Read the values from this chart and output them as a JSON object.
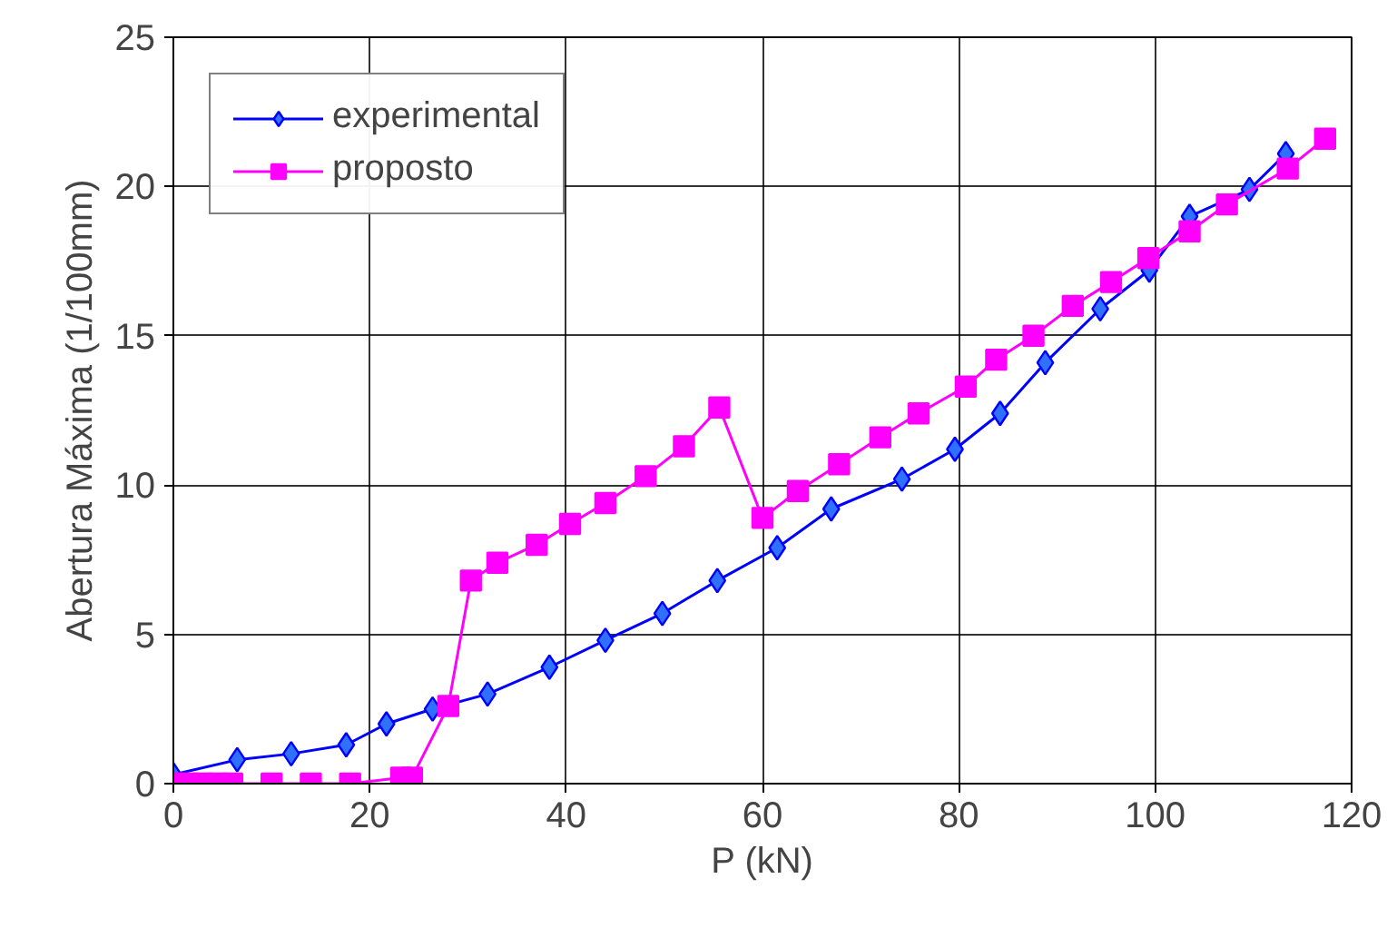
{
  "chart_data": {
    "type": "line",
    "xlabel": "P (kN)",
    "ylabel": "Abertura Máxima (1/100mm)",
    "xlim": [
      0,
      120
    ],
    "xticks": [
      0,
      20,
      40,
      60,
      80,
      100,
      120
    ],
    "ylim": [
      0,
      25
    ],
    "yticks": [
      0,
      5,
      10,
      15,
      20,
      25
    ],
    "grid": true,
    "legend": "top left",
    "series": [
      {
        "name": "experimental",
        "color": "#0000ff",
        "marker": "diamond",
        "x": [
          0,
          6.5,
          12,
          17.6,
          21.7,
          26.4,
          32,
          38.3,
          44,
          49.8,
          55.4,
          61.5,
          67,
          74.2,
          79.6,
          84.2,
          88.8,
          94.4,
          99.4,
          103.5,
          109.6,
          113.3
        ],
        "values": [
          0.3,
          0.8,
          1.0,
          1.3,
          2.0,
          2.5,
          3.0,
          3.9,
          4.8,
          5.7,
          6.8,
          7.9,
          9.2,
          10.2,
          11.2,
          12.4,
          14.1,
          15.9,
          17.2,
          19.0,
          19.9,
          21.1
        ]
      },
      {
        "name": "proposto",
        "color": "#ff00ff",
        "marker": "square",
        "x": [
          0,
          1.5,
          3,
          4.5,
          6,
          10,
          14,
          18,
          23.2,
          24.3,
          28,
          30.3,
          33,
          37,
          40.4,
          44,
          48.1,
          52,
          55.6,
          60,
          63.6,
          67.8,
          72,
          75.9,
          80.7,
          83.8,
          87.6,
          91.6,
          95.5,
          99.3,
          103.5,
          107.3,
          113.5,
          117.3
        ],
        "values": [
          0,
          0,
          0,
          0,
          0,
          0,
          0,
          0,
          0.2,
          0.2,
          2.6,
          6.8,
          7.4,
          8.0,
          8.7,
          9.4,
          10.3,
          11.3,
          12.6,
          8.9,
          9.8,
          10.7,
          11.6,
          12.4,
          13.3,
          14.2,
          15.0,
          16.0,
          16.8,
          17.6,
          18.5,
          19.4,
          20.6,
          21.6
        ]
      }
    ]
  }
}
